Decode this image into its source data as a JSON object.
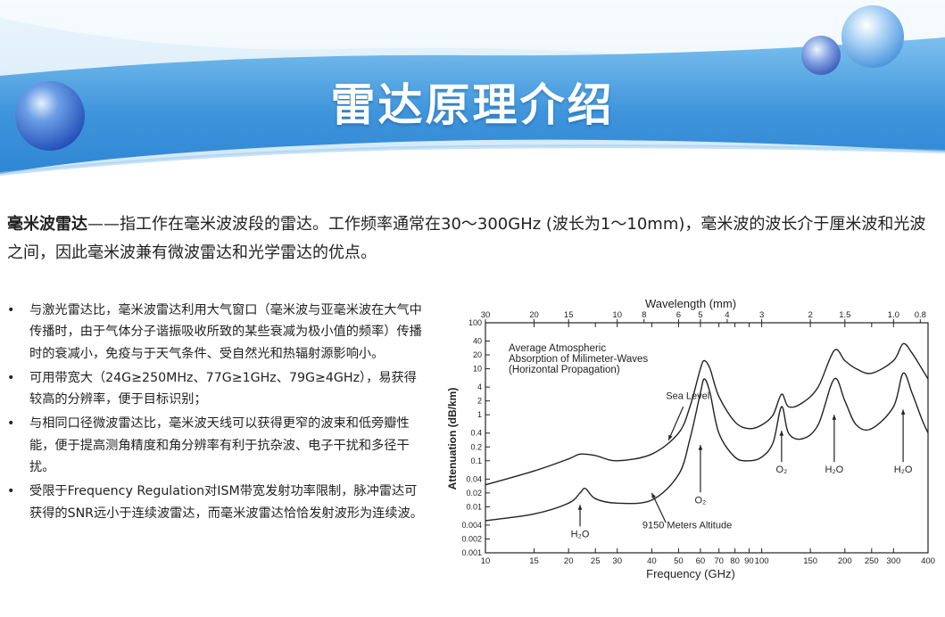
{
  "slide": {
    "title": "雷达原理介绍",
    "intro": {
      "term": "毫米波雷达",
      "text": "——指工作在毫米波波段的雷达。工作频率通常在30～300GHz (波长为1～10mm)，毫米波的波长介于厘米波和光波之间，因此毫米波兼有微波雷达和光学雷达的优点。"
    },
    "bullets": [
      {
        "marker": "•",
        "text": "与激光雷达比，毫米波雷达利用大气窗口（毫米波与亚毫米波在大气中传播时，由于气体分子谐振吸收所致的某些衰减为极小值的频率）传播时的衰减小，免疫与于天气条件、受自然光和热辐射源影响小。"
      },
      {
        "marker": "•",
        "text": "可用带宽大（24G≥250MHz、77G≥1GHz、79G≥4GHz），易获得较高的分辨率，便于目标识别；"
      },
      {
        "marker": "•",
        "text": "与相同口径微波雷达比，毫米波天线可以获得更窄的波束和低旁瓣性能，便于提高测角精度和角分辨率有利于抗杂波、电子干扰和多径干扰。"
      },
      {
        "marker": "•",
        "text": "受限于Frequency Regulation对ISM带宽发射功率限制，脉冲雷达可获得的SNR远小于连续波雷达，而毫米波雷达恰恰发射波形为连续波。"
      }
    ]
  },
  "chart_data": {
    "type": "line",
    "top_axis_title": "Wavelength (mm)",
    "top_tick_labels": [
      "30",
      "20",
      "15",
      "10",
      "8",
      "6",
      "5",
      "4",
      "3",
      "2",
      "1.5",
      "1.0",
      "0.8"
    ],
    "top_tick_values": [
      30,
      20,
      15,
      10,
      8,
      6,
      5,
      4,
      3,
      2,
      1.5,
      1.0,
      0.8
    ],
    "xlabel": "Frequency (GHz)",
    "ylabel": "Attenuation (dB/km)",
    "x_scale": "log",
    "y_scale": "log",
    "xlim": [
      10,
      400
    ],
    "ylim": [
      0.001,
      100
    ],
    "x_tick_labels": [
      "10",
      "15",
      "20",
      "25",
      "30",
      "40",
      "50",
      "60",
      "70",
      "80",
      "90",
      "100",
      "150",
      "200",
      "250",
      "300",
      "400"
    ],
    "x_tick_values": [
      10,
      15,
      20,
      25,
      30,
      40,
      50,
      60,
      70,
      80,
      90,
      100,
      150,
      200,
      250,
      300,
      400
    ],
    "y_tick_labels": [
      "0.001",
      "0.002",
      "0.004",
      "0.01",
      "0.02",
      "0.04",
      "0.1",
      "0.2",
      "0.4",
      "1",
      "2",
      "4",
      "10",
      "20",
      "40",
      "100"
    ],
    "y_tick_values": [
      0.001,
      0.002,
      0.004,
      0.01,
      0.02,
      0.04,
      0.1,
      0.2,
      0.4,
      1,
      2,
      4,
      10,
      20,
      40,
      100
    ],
    "annotation_title": [
      "Average Atmospheric",
      "Absorption of Milimeter-Waves",
      "(Horizontal Propagation)"
    ],
    "series": [
      {
        "name": "Sea Level",
        "x": [
          10,
          15,
          20,
          22,
          25,
          30,
          40,
          50,
          55,
          60,
          62,
          65,
          70,
          80,
          90,
          100,
          110,
          118,
          125,
          140,
          160,
          183,
          200,
          220,
          250,
          300,
          325,
          350,
          380,
          400
        ],
        "y": [
          0.03,
          0.06,
          0.11,
          0.14,
          0.13,
          0.1,
          0.14,
          0.4,
          1.5,
          10,
          15,
          10,
          2.5,
          0.7,
          0.5,
          0.6,
          1.0,
          2.8,
          1.5,
          1.8,
          4,
          25,
          15,
          10,
          8,
          15,
          35,
          22,
          10,
          6
        ]
      },
      {
        "name": "9150 Meters Altitude",
        "x": [
          10,
          15,
          20,
          22,
          23,
          25,
          30,
          40,
          50,
          55,
          60,
          62,
          65,
          70,
          80,
          90,
          100,
          110,
          118,
          125,
          140,
          160,
          183,
          200,
          220,
          250,
          300,
          325,
          350,
          380,
          400
        ],
        "y": [
          0.005,
          0.007,
          0.012,
          0.02,
          0.025,
          0.015,
          0.012,
          0.014,
          0.05,
          0.3,
          3,
          6,
          3,
          0.4,
          0.12,
          0.1,
          0.12,
          0.25,
          1.5,
          0.4,
          0.3,
          0.6,
          6,
          2,
          0.6,
          0.5,
          1.5,
          8,
          3,
          0.8,
          0.4
        ]
      }
    ],
    "annotations": [
      {
        "text": "Sea Level"
      },
      {
        "text": "9150 Meters Altitude"
      },
      {
        "text": "H₂O",
        "x": 22
      },
      {
        "text": "O₂",
        "x": 60
      },
      {
        "text": "O₂",
        "x": 118
      },
      {
        "text": "H₂O",
        "x": 183
      },
      {
        "text": "H₂O",
        "x": 325
      }
    ]
  }
}
